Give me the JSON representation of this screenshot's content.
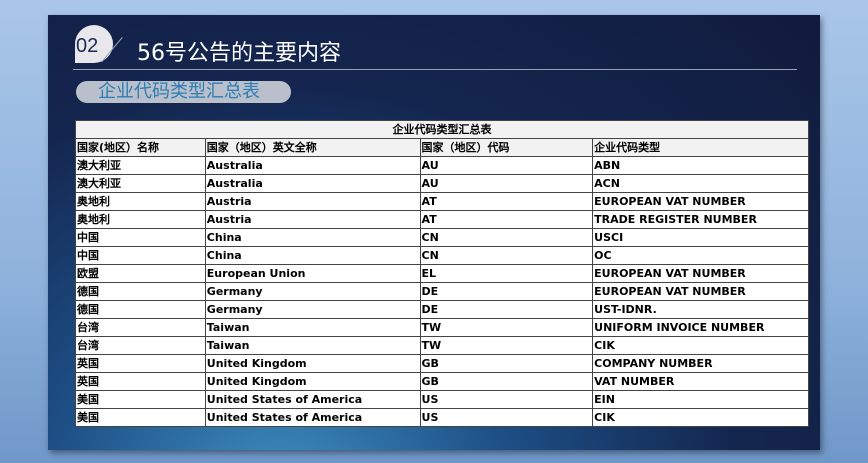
{
  "slide": {
    "number": "02",
    "title": "56号公告的主要内容",
    "subtitle": "企业代码类型汇总表"
  },
  "table": {
    "caption": "企业代码类型汇总表",
    "headers": [
      "国家(地区）名称",
      "国家（地区）英文全称",
      "国家（地区）代码",
      "企业代码类型"
    ],
    "rows": [
      [
        "澳大利亚",
        "Australia",
        "AU",
        "ABN"
      ],
      [
        "澳大利亚",
        "Australia",
        "AU",
        "ACN"
      ],
      [
        "奥地利",
        "Austria",
        "AT",
        "EUROPEAN VAT NUMBER"
      ],
      [
        "奥地利",
        "Austria",
        "AT",
        "TRADE REGISTER NUMBER"
      ],
      [
        "中国",
        "China",
        "CN",
        "USCI"
      ],
      [
        "中国",
        "China",
        "CN",
        "OC"
      ],
      [
        "欧盟",
        "European Union",
        "EL",
        "EUROPEAN VAT NUMBER"
      ],
      [
        "德国",
        "Germany",
        "DE",
        "EUROPEAN VAT NUMBER"
      ],
      [
        "德国",
        "Germany",
        "DE",
        "UST-IDNR."
      ],
      [
        "台湾",
        "Taiwan",
        "TW",
        "UNIFORM INVOICE NUMBER"
      ],
      [
        "台湾",
        "Taiwan",
        "TW",
        "CIK"
      ],
      [
        "英国",
        "United Kingdom",
        "GB",
        "COMPANY NUMBER"
      ],
      [
        "英国",
        "United Kingdom",
        "GB",
        "VAT NUMBER"
      ],
      [
        "美国",
        "United States of America",
        "US",
        "EIN"
      ],
      [
        "美国",
        "United States of America",
        "US",
        "CIK"
      ]
    ]
  }
}
